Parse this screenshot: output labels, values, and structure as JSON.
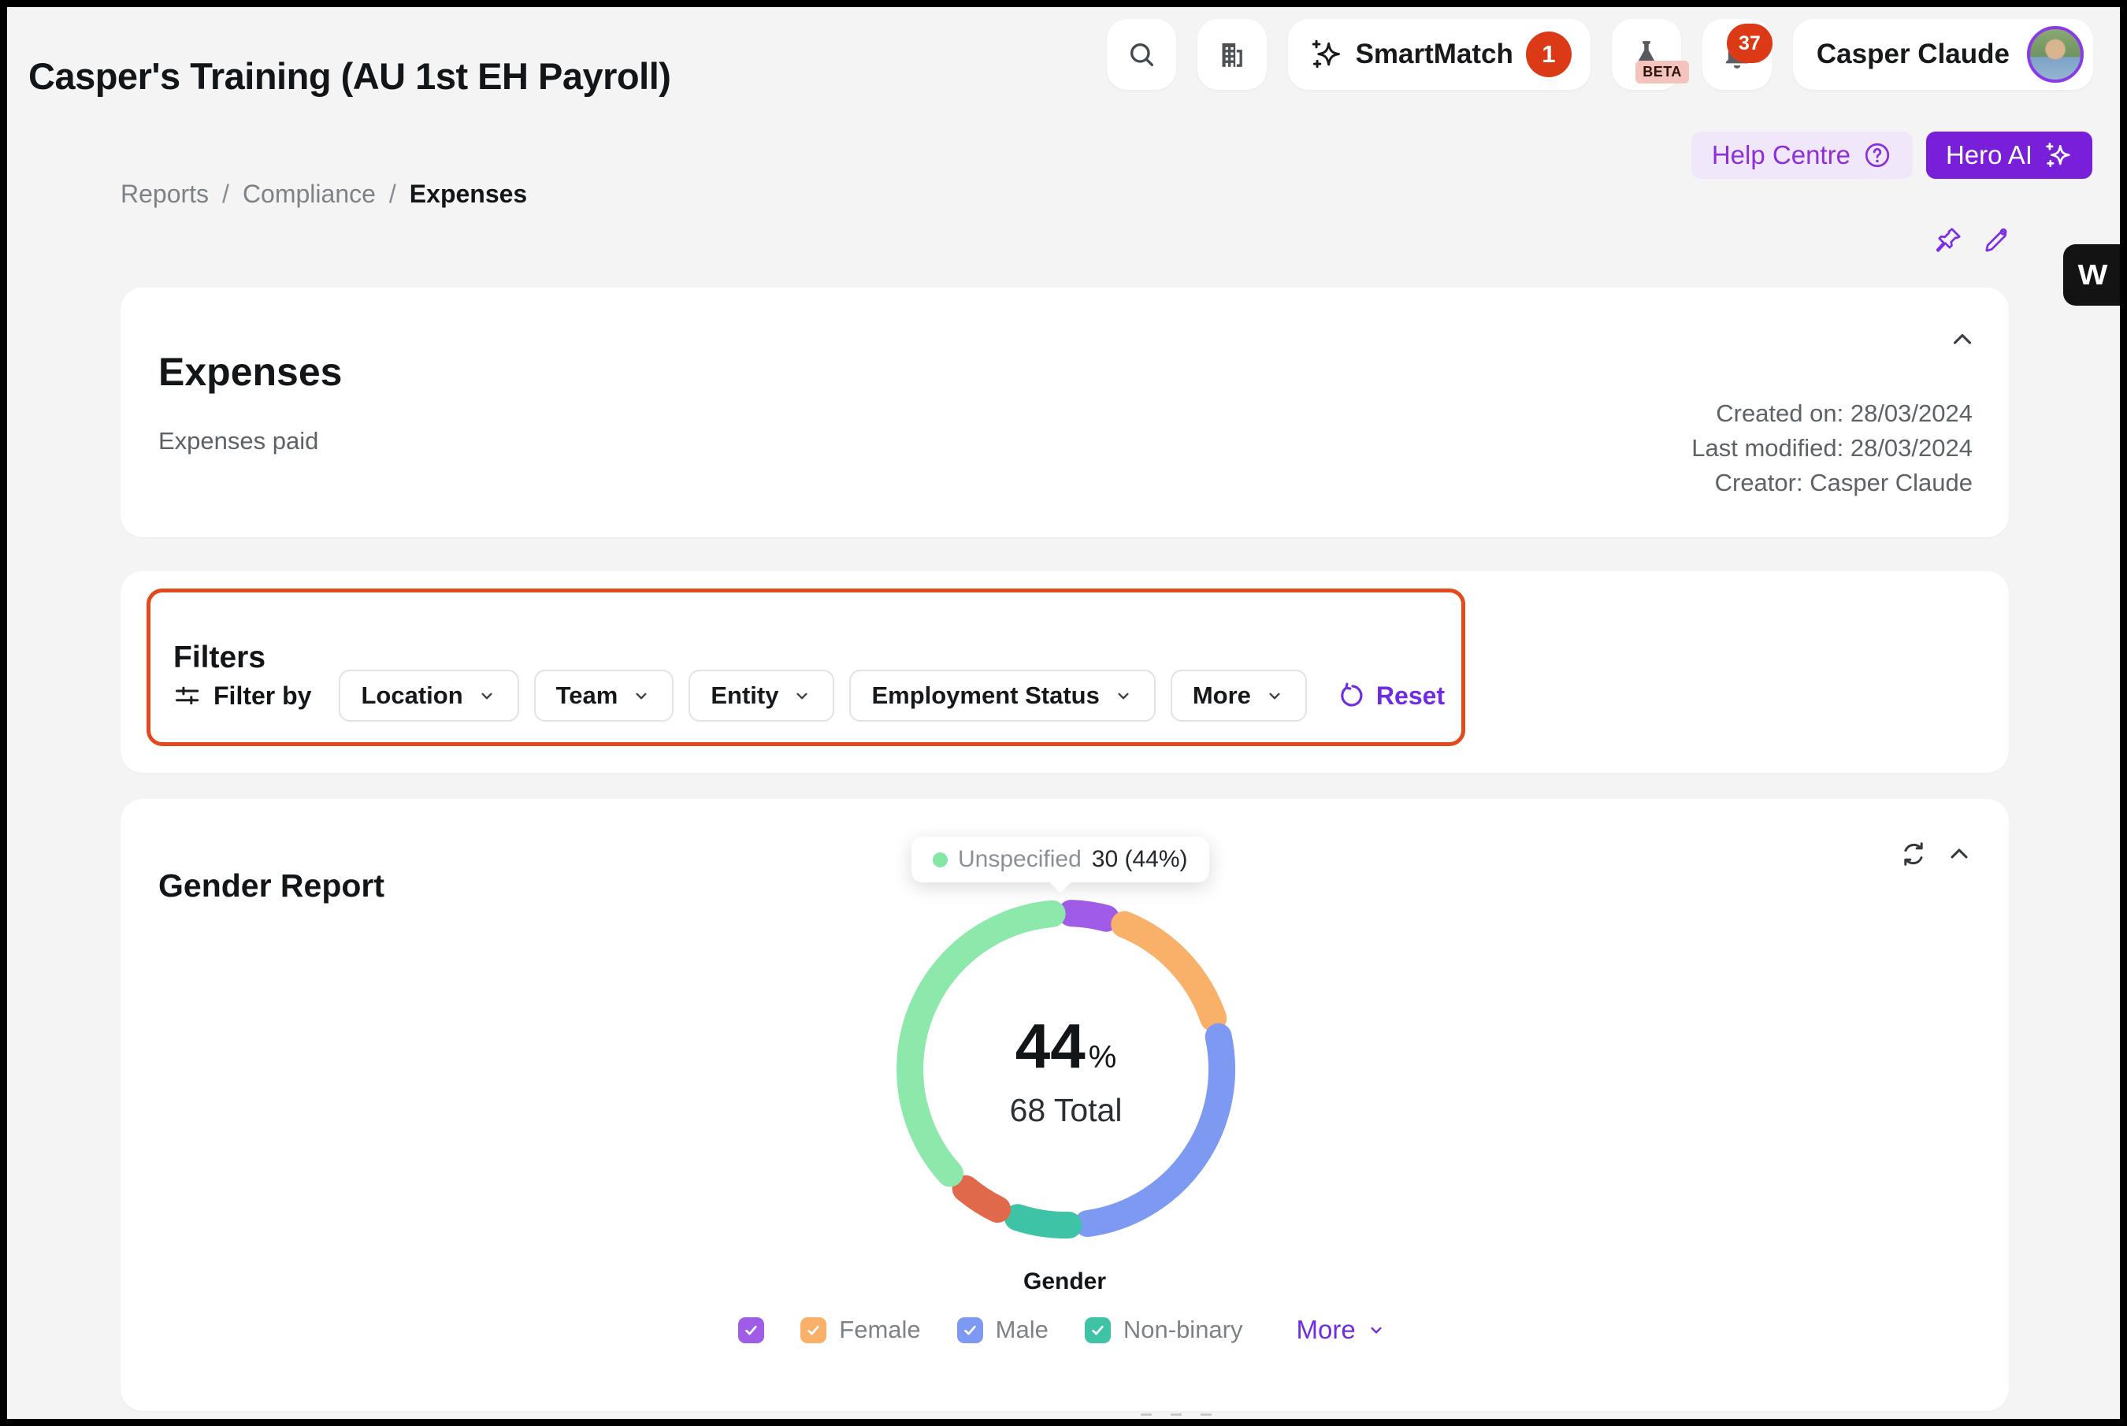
{
  "app": {
    "title": "Casper's Training (AU 1st EH Payroll)"
  },
  "header": {
    "smartmatch_label": "SmartMatch",
    "smartmatch_badge": "1",
    "beta_label": "BETA",
    "notification_count": "37",
    "profile_name": "Casper Claude"
  },
  "quick_actions": {
    "help_centre": "Help Centre",
    "hero_ai": "Hero AI"
  },
  "breadcrumb": {
    "items": [
      "Reports",
      "Compliance",
      "Expenses"
    ]
  },
  "side_widget": {
    "letter": "W"
  },
  "expenses": {
    "title": "Expenses",
    "subtitle": "Expenses paid",
    "created": "Created on: 28/03/2024",
    "modified": "Last modified: 28/03/2024",
    "creator": "Creator: Casper Claude"
  },
  "filters": {
    "title": "Filters",
    "filter_by": "Filter by",
    "dropdowns": [
      "Location",
      "Team",
      "Entity",
      "Employment Status",
      "More"
    ],
    "reset": "Reset",
    "highlight_color": "#e2491b"
  },
  "gender_report": {
    "title": "Gender Report",
    "tooltip_label": "Unspecified",
    "tooltip_value": "30 (44%)",
    "tooltip_dot_color": "#83e6a4",
    "center_percent": "44",
    "center_percent_suffix": "%",
    "center_total": "68 Total",
    "x_label": "Gender",
    "more": "More",
    "legend": [
      {
        "label": "",
        "color": "#a05ce6",
        "checked": true
      },
      {
        "label": "Female",
        "color": "#f9b169",
        "checked": true
      },
      {
        "label": "Male",
        "color": "#7d99f2",
        "checked": true
      },
      {
        "label": "Non-binary",
        "color": "#3fc3a6",
        "checked": true
      }
    ]
  },
  "chart_data": {
    "type": "donut",
    "title": "Gender Report",
    "total": 68,
    "center_percent": 44,
    "highlighted_segment": {
      "label": "Unspecified",
      "value": 30,
      "percent": 44
    },
    "legend_position": "bottom",
    "segments": [
      {
        "label": "",
        "value": 2,
        "color": "#a05ce6",
        "arc": {
          "start": 2,
          "end": 15
        }
      },
      {
        "label": "Female",
        "value": 10,
        "color": "#f9b169",
        "arc": {
          "start": 22,
          "end": 71
        }
      },
      {
        "label": "Male",
        "value": 20,
        "color": "#7d99f2",
        "arc": {
          "start": 78,
          "end": 172
        }
      },
      {
        "label": "Non-binary",
        "value": 4,
        "color": "#3fc3a6",
        "arc": {
          "start": 179,
          "end": 198
        }
      },
      {
        "label": "",
        "value": 2,
        "color": "#e0694b",
        "arc": {
          "start": 206,
          "end": 220
        }
      },
      {
        "label": "Unspecified",
        "value": 30,
        "color": "#8ce8ab",
        "arc": {
          "start": 228,
          "end": 355
        }
      }
    ]
  }
}
